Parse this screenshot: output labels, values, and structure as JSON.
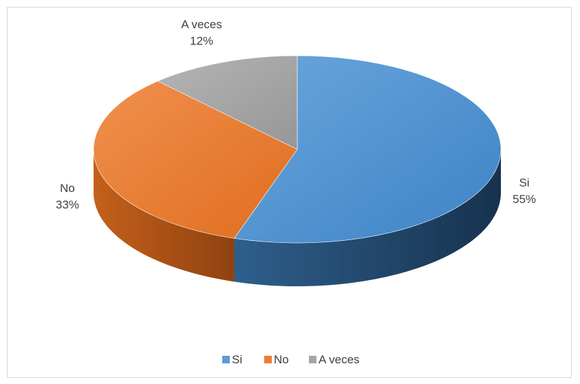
{
  "chart_data": {
    "type": "pie",
    "style": "3d",
    "title": "",
    "categories": [
      "Si",
      "No",
      "A veces"
    ],
    "values": [
      55,
      33,
      12
    ],
    "value_labels": [
      "55%",
      "33%",
      "12%"
    ],
    "colors": [
      "#5b9bd5",
      "#ed7d31",
      "#a5a5a5"
    ],
    "legend": {
      "position": "bottom",
      "entries": [
        "Si",
        "No",
        "A veces"
      ]
    }
  }
}
